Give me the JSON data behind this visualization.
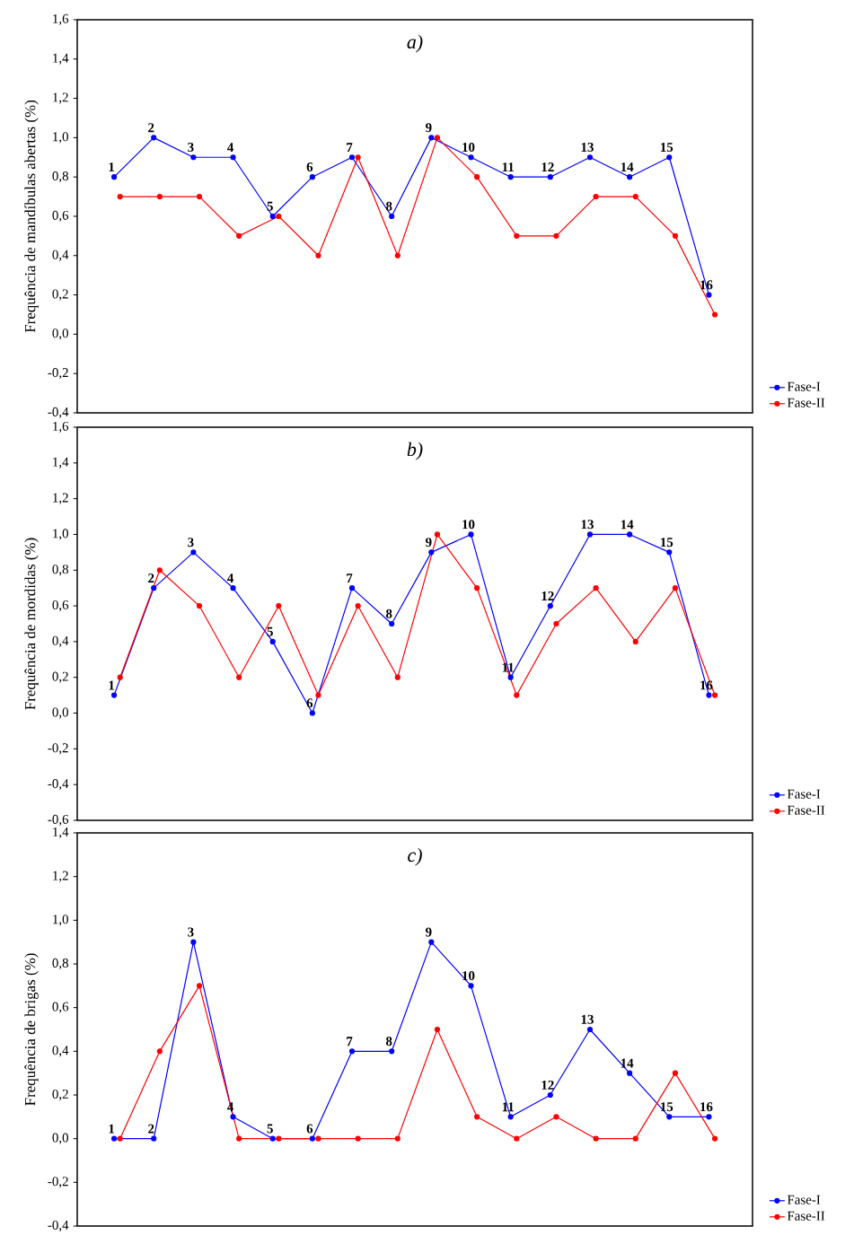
{
  "chart_data": [
    {
      "type": "line",
      "title": "a)",
      "ylabel": "Frequência de mandíbulas abertas (%)",
      "categories": [
        null,
        null,
        null,
        null,
        null,
        null,
        null,
        null,
        null,
        null,
        null,
        null,
        null,
        null,
        null,
        null
      ],
      "ylim": [
        -0.4,
        1.6
      ],
      "yticks": [
        {
          "value": -0.4,
          "label": "-0,4"
        },
        {
          "value": -0.2,
          "label": "-0,2"
        },
        {
          "value": 0,
          "label": "0,0"
        },
        {
          "value": 0.2,
          "label": "0,2"
        },
        {
          "value": 0.4,
          "label": "0,4"
        },
        {
          "value": 0.6,
          "label": "0,6"
        },
        {
          "value": 0.8,
          "label": "0,8"
        },
        {
          "value": 1.0,
          "label": "1,0"
        },
        {
          "value": 1.2,
          "label": "1,2"
        },
        {
          "value": 1.4,
          "label": "1,4"
        },
        {
          "value": 1.6,
          "label": "1,6"
        }
      ],
      "tick_labels": "y",
      "legend": "bottom right",
      "marker": "circle",
      "line_style": "solid",
      "series": [
        {
          "name": "Fase-I",
          "color": "#0000ff",
          "values": [
            0.8,
            1.0,
            0.9,
            0.9,
            0.6,
            0.8,
            0.9,
            0.6,
            1.0,
            0.9,
            0.8,
            0.8,
            0.9,
            0.8,
            0.9,
            0.2
          ]
        },
        {
          "name": "Fase-II",
          "color": "#ff0000",
          "values": [
            0.7,
            0.7,
            0.7,
            0.5,
            0.6,
            0.4,
            0.9,
            0.4,
            1.0,
            0.8,
            0.5,
            0.5,
            0.7,
            0.7,
            0.5,
            0.1
          ]
        }
      ],
      "annotations": [
        {
          "text": "1",
          "y": 0.8
        },
        {
          "text": "2",
          "y": 1.0
        },
        {
          "text": "3",
          "y": 0.9
        },
        {
          "text": "4",
          "y": 0.9
        },
        {
          "text": "5",
          "y": 0.6
        },
        {
          "text": "6",
          "y": 0.8
        },
        {
          "text": "7",
          "y": 0.9
        },
        {
          "text": "8",
          "y": 0.6
        },
        {
          "text": "9",
          "y": 1.0
        },
        {
          "text": "10",
          "y": 0.9
        },
        {
          "text": "11",
          "y": 0.8
        },
        {
          "text": "12",
          "y": 0.8
        },
        {
          "text": "13",
          "y": 0.9
        },
        {
          "text": "14",
          "y": 0.8
        },
        {
          "text": "15",
          "y": 0.9
        },
        {
          "text": "16",
          "y": 0.2
        }
      ]
    },
    {
      "type": "line",
      "title": "b)",
      "ylabel": "Frequência de mordidas (%)",
      "categories": [
        null,
        null,
        null,
        null,
        null,
        null,
        null,
        null,
        null,
        null,
        null,
        null,
        null,
        null,
        null,
        null
      ],
      "ylim": [
        -0.6,
        1.6
      ],
      "yticks": [
        {
          "value": -0.6,
          "label": "-0,6"
        },
        {
          "value": -0.4,
          "label": "-0,4"
        },
        {
          "value": -0.2,
          "label": "-0,2"
        },
        {
          "value": 0,
          "label": "0,0"
        },
        {
          "value": 0.2,
          "label": "0,2"
        },
        {
          "value": 0.4,
          "label": "0,4"
        },
        {
          "value": 0.6,
          "label": "0,6"
        },
        {
          "value": 0.8,
          "label": "0,8"
        },
        {
          "value": 1.0,
          "label": "1,0"
        },
        {
          "value": 1.2,
          "label": "1,2"
        },
        {
          "value": 1.4,
          "label": "1,4"
        },
        {
          "value": 1.6,
          "label": "1,6"
        }
      ],
      "tick_labels": "y",
      "legend": "bottom right",
      "marker": "circle",
      "line_style": "solid",
      "series": [
        {
          "name": "Fase-I",
          "color": "#0000ff",
          "values": [
            0.1,
            0.7,
            0.9,
            0.7,
            0.4,
            0.0,
            0.7,
            0.5,
            0.9,
            1.0,
            0.2,
            0.6,
            1.0,
            1.0,
            0.9,
            0.1
          ]
        },
        {
          "name": "Fase-II",
          "color": "#ff0000",
          "values": [
            0.2,
            0.8,
            0.6,
            0.2,
            0.6,
            0.1,
            0.6,
            0.2,
            1.0,
            0.7,
            0.1,
            0.5,
            0.7,
            0.4,
            0.7,
            0.1
          ]
        }
      ],
      "annotations": [
        {
          "text": "1",
          "y": 0.1
        },
        {
          "text": "2",
          "y": 0.7
        },
        {
          "text": "3",
          "y": 0.9
        },
        {
          "text": "4",
          "y": 0.7
        },
        {
          "text": "5",
          "y": 0.4
        },
        {
          "text": "6",
          "y": 0.0
        },
        {
          "text": "7",
          "y": 0.7
        },
        {
          "text": "8",
          "y": 0.5
        },
        {
          "text": "9",
          "y": 0.9
        },
        {
          "text": "10",
          "y": 1.0
        },
        {
          "text": "11",
          "y": 0.2
        },
        {
          "text": "12",
          "y": 0.6
        },
        {
          "text": "13",
          "y": 1.0
        },
        {
          "text": "14",
          "y": 1.0
        },
        {
          "text": "15",
          "y": 0.9
        },
        {
          "text": "16",
          "y": 0.1
        }
      ]
    },
    {
      "type": "line",
      "title": "c)",
      "ylabel": "Frequência de brigas (%)",
      "categories": [
        null,
        null,
        null,
        null,
        null,
        null,
        null,
        null,
        null,
        null,
        null,
        null,
        null,
        null,
        null,
        null
      ],
      "ylim": [
        -0.4,
        1.4
      ],
      "yticks": [
        {
          "value": -0.4,
          "label": "-0,4"
        },
        {
          "value": -0.2,
          "label": "-0,2"
        },
        {
          "value": 0,
          "label": "0,0"
        },
        {
          "value": 0.2,
          "label": "0,2"
        },
        {
          "value": 0.4,
          "label": "0,4"
        },
        {
          "value": 0.6,
          "label": "0,6"
        },
        {
          "value": 0.8,
          "label": "0,8"
        },
        {
          "value": 1.0,
          "label": "1,0"
        },
        {
          "value": 1.2,
          "label": "1,2"
        },
        {
          "value": 1.4,
          "label": "1,4"
        }
      ],
      "tick_labels": "y",
      "legend": "bottom right",
      "marker": "circle",
      "line_style": "solid",
      "series": [
        {
          "name": "Fase-I",
          "color": "#0000ff",
          "values": [
            0,
            0,
            0.9,
            0.1,
            0,
            0,
            0.4,
            0.4,
            0.9,
            0.7,
            0.1,
            0.2,
            0.5,
            0.3,
            0.1,
            0.1
          ]
        },
        {
          "name": "Fase-II",
          "color": "#ff0000",
          "values": [
            0,
            0.4,
            0.7,
            0,
            0,
            0,
            0,
            0,
            0.5,
            0.1,
            0,
            0.1,
            0,
            0,
            0.3,
            0
          ]
        }
      ],
      "annotations": [
        {
          "text": "1",
          "y": 0
        },
        {
          "text": "2",
          "y": 0
        },
        {
          "text": "3",
          "y": 0.9
        },
        {
          "text": "4",
          "y": 0.1
        },
        {
          "text": "5",
          "y": 0
        },
        {
          "text": "6",
          "y": 0
        },
        {
          "text": "7",
          "y": 0.4
        },
        {
          "text": "8",
          "y": 0.4
        },
        {
          "text": "9",
          "y": 0.9
        },
        {
          "text": "10",
          "y": 0.7
        },
        {
          "text": "11",
          "y": 0.1
        },
        {
          "text": "12",
          "y": 0.2
        },
        {
          "text": "13",
          "y": 0.5
        },
        {
          "text": "14",
          "y": 0.3
        },
        {
          "text": "15",
          "y": 0.1
        },
        {
          "text": "16",
          "y": 0.1
        }
      ]
    }
  ]
}
